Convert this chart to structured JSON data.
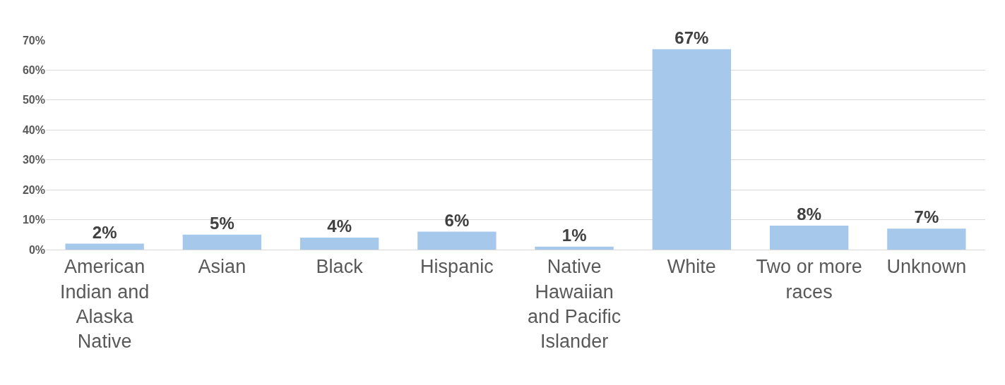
{
  "chart_data": {
    "type": "bar",
    "categories": [
      "American Indian and Alaska Native",
      "Asian",
      "Black",
      "Hispanic",
      "Native Hawaiian and Pacific Islander",
      "White",
      "Two or more races",
      "Unknown"
    ],
    "values": [
      2,
      5,
      4,
      6,
      1,
      67,
      8,
      7
    ],
    "value_labels": [
      "2%",
      "5%",
      "4%",
      "6%",
      "1%",
      "67%",
      "8%",
      "7%"
    ],
    "color": "#a6c9eb",
    "ylim": [
      0,
      70
    ],
    "yticks": [
      {
        "value": 0,
        "label": "0%"
      },
      {
        "value": 10,
        "label": "10%"
      },
      {
        "value": 20,
        "label": "20%"
      },
      {
        "value": 30,
        "label": "30%"
      },
      {
        "value": 40,
        "label": "40%"
      },
      {
        "value": 50,
        "label": "50%"
      },
      {
        "value": 60,
        "label": "60%"
      },
      {
        "value": 70,
        "label": "70%"
      }
    ],
    "grid": "y"
  }
}
